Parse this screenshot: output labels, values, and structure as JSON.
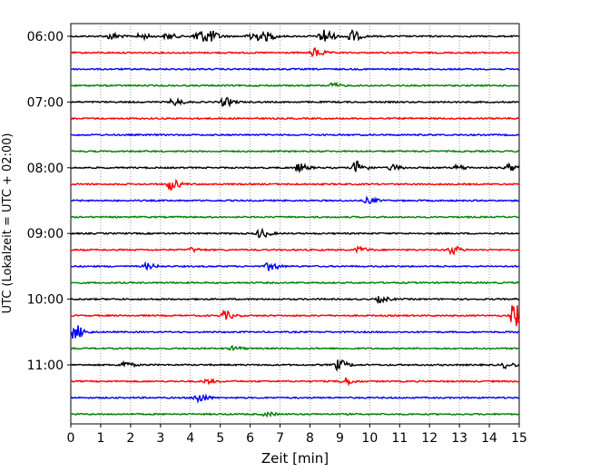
{
  "chart_data": {
    "type": "line",
    "title": "",
    "xlabel": "Zeit  [min]",
    "ylabel": "UTC (Lokalzeit = UTC + 02:00)",
    "xlim": [
      0,
      15
    ],
    "x_ticks": [
      "0",
      "1",
      "2",
      "3",
      "4",
      "5",
      "6",
      "7",
      "8",
      "9",
      "10",
      "11",
      "12",
      "13",
      "14",
      "15"
    ],
    "y_ticks": [
      "06:00",
      "07:00",
      "08:00",
      "09:00",
      "10:00",
      "11:00"
    ],
    "grid": "vertical dotted",
    "colors": [
      "#000000",
      "#ff0000",
      "#0000ff",
      "#008000"
    ],
    "trace_interval_minutes": 15,
    "trace_count": 24,
    "events": [
      {
        "trace": 0,
        "x": 1.3,
        "amp": 0.35
      },
      {
        "trace": 0,
        "x": 2.3,
        "amp": 0.3
      },
      {
        "trace": 0,
        "x": 3.2,
        "amp": 0.3
      },
      {
        "trace": 0,
        "x": 4.2,
        "amp": 0.8
      },
      {
        "trace": 0,
        "x": 4.6,
        "amp": 0.6
      },
      {
        "trace": 0,
        "x": 6.0,
        "amp": 0.7
      },
      {
        "trace": 0,
        "x": 6.5,
        "amp": 0.4
      },
      {
        "trace": 0,
        "x": 8.4,
        "amp": 0.9
      },
      {
        "trace": 0,
        "x": 9.3,
        "amp": 0.7
      },
      {
        "trace": 1,
        "x": 8.1,
        "amp": 0.5
      },
      {
        "trace": 3,
        "x": 8.7,
        "amp": 0.25
      },
      {
        "trace": 4,
        "x": 3.4,
        "amp": 0.35
      },
      {
        "trace": 4,
        "x": 5.1,
        "amp": 0.45
      },
      {
        "trace": 8,
        "x": 7.6,
        "amp": 0.4
      },
      {
        "trace": 8,
        "x": 9.5,
        "amp": 0.7
      },
      {
        "trace": 8,
        "x": 10.7,
        "amp": 0.3
      },
      {
        "trace": 8,
        "x": 12.9,
        "amp": 0.25
      },
      {
        "trace": 8,
        "x": 14.6,
        "amp": 0.35
      },
      {
        "trace": 9,
        "x": 3.3,
        "amp": 0.6
      },
      {
        "trace": 10,
        "x": 9.9,
        "amp": 0.3
      },
      {
        "trace": 12,
        "x": 6.3,
        "amp": 0.45
      },
      {
        "trace": 13,
        "x": 4.0,
        "amp": 0.2
      },
      {
        "trace": 13,
        "x": 9.6,
        "amp": 0.3
      },
      {
        "trace": 13,
        "x": 12.7,
        "amp": 0.45
      },
      {
        "trace": 14,
        "x": 2.5,
        "amp": 0.3
      },
      {
        "trace": 14,
        "x": 6.6,
        "amp": 0.45
      },
      {
        "trace": 16,
        "x": 10.3,
        "amp": 0.3
      },
      {
        "trace": 17,
        "x": 5.1,
        "amp": 0.45
      },
      {
        "trace": 17,
        "x": 14.8,
        "amp": 1.4
      },
      {
        "trace": 18,
        "x": 0.1,
        "amp": 0.8
      },
      {
        "trace": 19,
        "x": 5.4,
        "amp": 0.2
      },
      {
        "trace": 20,
        "x": 1.7,
        "amp": 0.35
      },
      {
        "trace": 20,
        "x": 8.9,
        "amp": 0.55
      },
      {
        "trace": 20,
        "x": 14.5,
        "amp": 0.3
      },
      {
        "trace": 21,
        "x": 9.1,
        "amp": 0.4
      },
      {
        "trace": 21,
        "x": 4.5,
        "amp": 0.2
      },
      {
        "trace": 22,
        "x": 4.2,
        "amp": 0.55
      },
      {
        "trace": 23,
        "x": 6.5,
        "amp": 0.2
      }
    ]
  }
}
